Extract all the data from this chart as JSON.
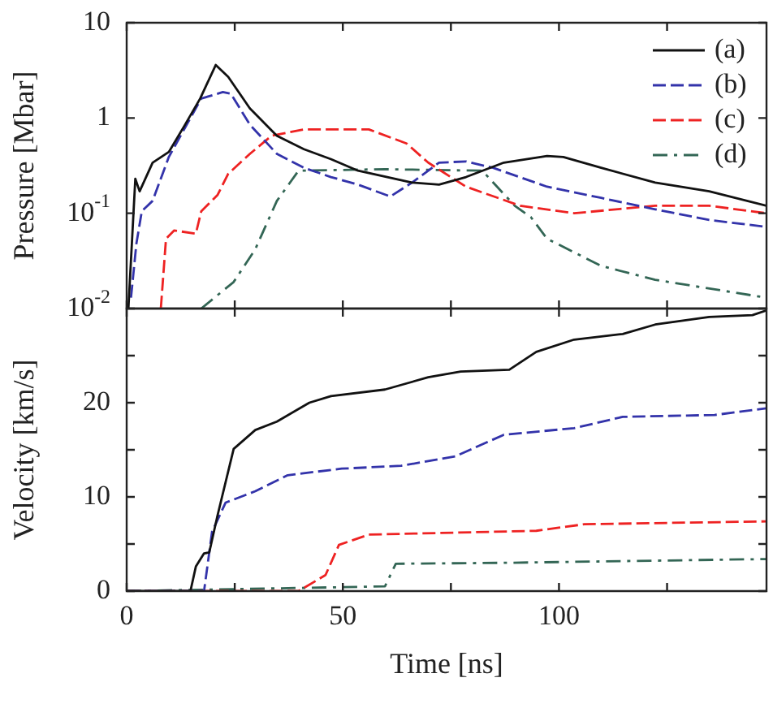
{
  "chart_data": [
    {
      "type": "line",
      "ylabel": "Pressure [Mbar]",
      "log": "y",
      "xlim": [
        0,
        148
      ],
      "xticks": [
        0,
        {
          "value": 25,
          "label": null
        },
        50,
        {
          "value": 75,
          "label": null
        },
        100,
        {
          "value": 125,
          "label": null
        }
      ],
      "ylim": [
        0.01,
        10
      ],
      "yticks": [
        {
          "value": 0.01,
          "label": "10$^{-2}$"
        },
        {
          "value": 0.1,
          "label": "10$^{-1}$"
        },
        1,
        10
      ],
      "tick_labels": "y",
      "legend": "top right",
      "marker": "none",
      "series": [
        {
          "name": "(a)",
          "color": "#111111",
          "line_style": "solid",
          "x": [
            0.4,
            2,
            3,
            6,
            9.75,
            13.5,
            17,
            20.6,
            23.5,
            28.5,
            34.75,
            41,
            47.25,
            53.5,
            66,
            72.25,
            78.5,
            87.25,
            97.25,
            101,
            109.75,
            122.25,
            134.75,
            148
          ],
          "values": [
            0.01,
            0.23,
            0.17,
            0.34,
            0.44,
            0.85,
            1.6,
            3.6,
            2.7,
            1.26,
            0.65,
            0.47,
            0.37,
            0.28,
            0.21,
            0.2,
            0.24,
            0.34,
            0.4,
            0.39,
            0.3,
            0.21,
            0.17,
            0.12
          ]
        },
        {
          "name": "(b)",
          "color": "#3333aa",
          "line_style": "dashed",
          "x": [
            1,
            2.25,
            3.5,
            6,
            9.75,
            13.5,
            17.25,
            22.25,
            24.1,
            28.5,
            34.75,
            41,
            47.25,
            53.5,
            61,
            66,
            72.25,
            78.5,
            84.75,
            97.25,
            109.75,
            122.25,
            134.75,
            148
          ],
          "values": [
            0.013,
            0.048,
            0.105,
            0.135,
            0.39,
            0.79,
            1.6,
            1.87,
            1.8,
            0.85,
            0.42,
            0.3,
            0.24,
            0.2,
            0.15,
            0.21,
            0.34,
            0.35,
            0.3,
            0.19,
            0.145,
            0.11,
            0.085,
            0.072
          ]
        },
        {
          "name": "(c)",
          "color": "#ee2222",
          "line_style": "dashed",
          "x": [
            7.9,
            9.1,
            11,
            16,
            17.25,
            21,
            23.5,
            28.5,
            33.5,
            41,
            56,
            64.75,
            69.75,
            78.5,
            91,
            103.5,
            122.25,
            134.75,
            148
          ],
          "values": [
            0.01,
            0.054,
            0.066,
            0.061,
            0.105,
            0.155,
            0.26,
            0.42,
            0.65,
            0.76,
            0.76,
            0.54,
            0.34,
            0.19,
            0.12,
            0.1,
            0.12,
            0.12,
            0.1
          ]
        },
        {
          "name": "(d)",
          "color": "#336655",
          "line_style": "dashdot",
          "x": [
            17.25,
            24.75,
            29.75,
            34.75,
            39.75,
            59.75,
            82.25,
            89.75,
            93.5,
            97.25,
            109.75,
            122.25,
            148
          ],
          "values": [
            0.01,
            0.019,
            0.042,
            0.135,
            0.28,
            0.29,
            0.28,
            0.12,
            0.091,
            0.054,
            0.028,
            0.02,
            0.013
          ]
        }
      ]
    },
    {
      "type": "line",
      "xlabel": "Time [ns]",
      "ylabel": "Velocity [km/s]",
      "xlim": [
        0,
        148
      ],
      "xticks": [
        0,
        {
          "value": 25,
          "label": null
        },
        50,
        {
          "value": 75,
          "label": null
        },
        100,
        {
          "value": 125,
          "label": null
        }
      ],
      "ylim": [
        0,
        30
      ],
      "yticks": [
        0,
        {
          "value": 5,
          "label": null
        },
        10,
        {
          "value": 15,
          "label": null
        },
        20,
        {
          "value": 25,
          "label": null
        }
      ],
      "legend": false,
      "marker": "none",
      "series": [
        {
          "color": "#111111",
          "line_style": "solid",
          "x": [
            0,
            14.75,
            16,
            17.9,
            19.1,
            21,
            24.75,
            29.75,
            34.75,
            42.25,
            47.25,
            59.75,
            69.75,
            77.25,
            88.5,
            94.75,
            103.5,
            114.75,
            122.25,
            134.75,
            144.75,
            148
          ],
          "values": [
            0,
            0,
            2.6,
            4,
            4.1,
            8,
            15.1,
            17.1,
            18,
            20,
            20.7,
            21.4,
            22.7,
            23.3,
            23.5,
            25.4,
            26.7,
            27.3,
            28.3,
            29.1,
            29.3,
            29.8
          ]
        },
        {
          "color": "#3333aa",
          "line_style": "dashed",
          "x": [
            0,
            17.9,
            19.75,
            22.9,
            29.75,
            37.25,
            49.75,
            63.5,
            76,
            87.25,
            103.5,
            114.75,
            136,
            148
          ],
          "values": [
            0,
            0,
            6.3,
            9.4,
            10.6,
            12.3,
            13,
            13.3,
            14.3,
            16.6,
            17.3,
            18.5,
            18.7,
            19.4
          ]
        },
        {
          "color": "#ee2222",
          "line_style": "dashed",
          "x": [
            0,
            39.75,
            46,
            49.1,
            56,
            94.75,
            105.9,
            148
          ],
          "values": [
            0,
            0,
            1.7,
            4.9,
            6,
            6.4,
            7.1,
            7.4
          ]
        },
        {
          "color": "#336655",
          "line_style": "dashdot",
          "x": [
            0,
            59.75,
            62.25,
            87.25,
            148
          ],
          "values": [
            0,
            0.5,
            2.9,
            3,
            3.4
          ]
        }
      ]
    }
  ]
}
